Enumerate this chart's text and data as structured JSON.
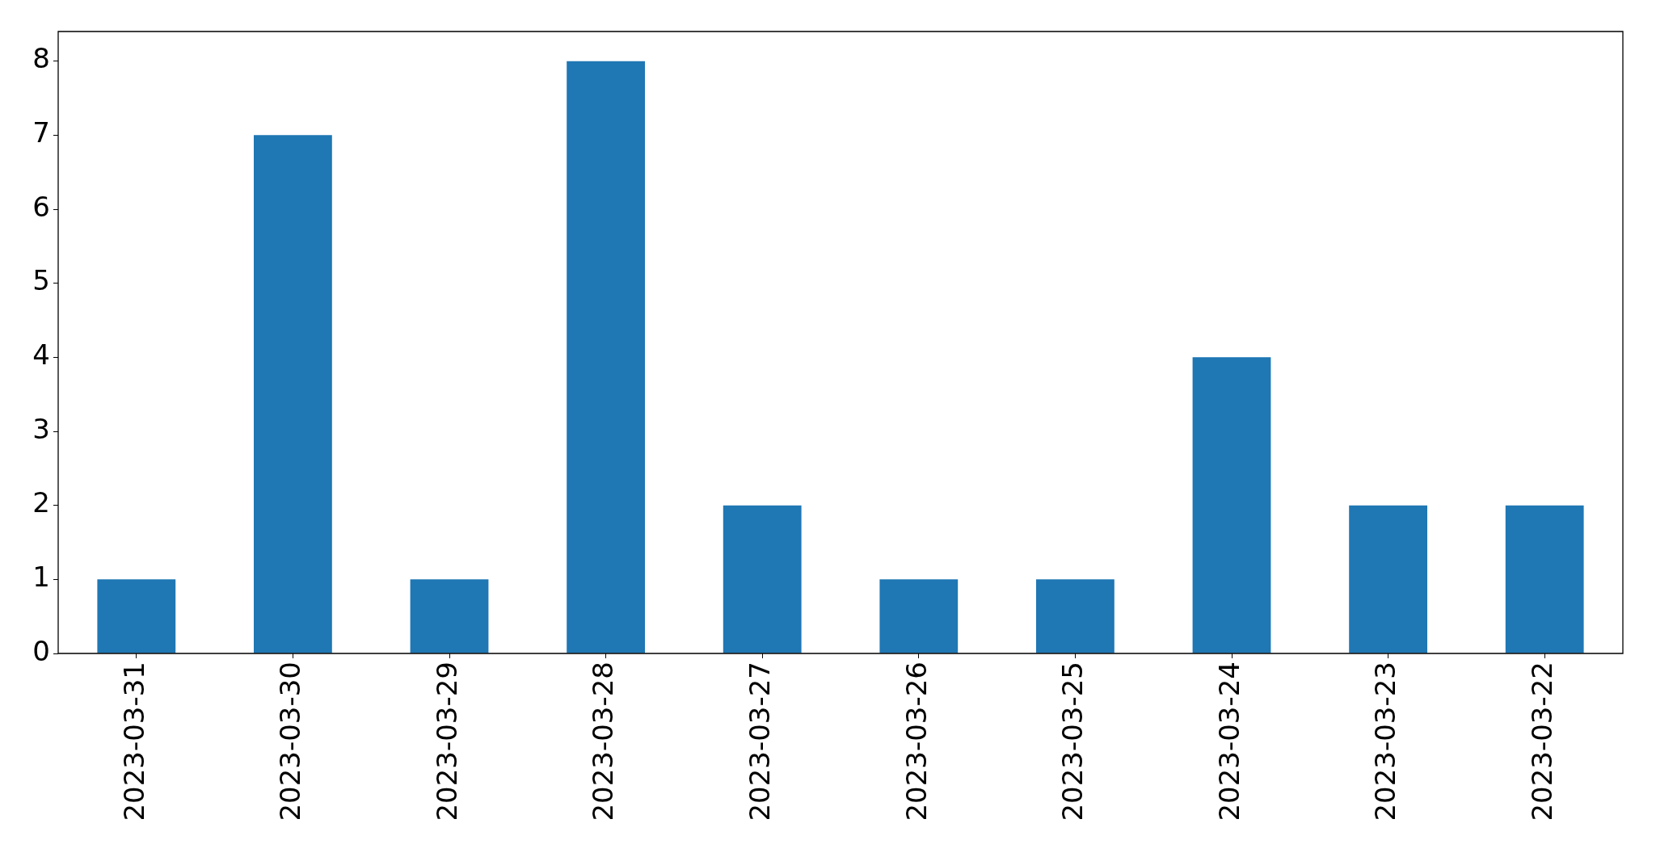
{
  "chart_data": {
    "type": "bar",
    "categories": [
      "2023-03-31",
      "2023-03-30",
      "2023-03-29",
      "2023-03-28",
      "2023-03-27",
      "2023-03-26",
      "2023-03-25",
      "2023-03-24",
      "2023-03-23",
      "2023-03-22"
    ],
    "values": [
      1,
      7,
      1,
      8,
      2,
      1,
      1,
      4,
      2,
      2
    ],
    "color": "#1f77b4",
    "ylim": [
      0,
      8.4
    ],
    "yticks": [
      0,
      1,
      2,
      3,
      4,
      5,
      6,
      7,
      8
    ]
  }
}
